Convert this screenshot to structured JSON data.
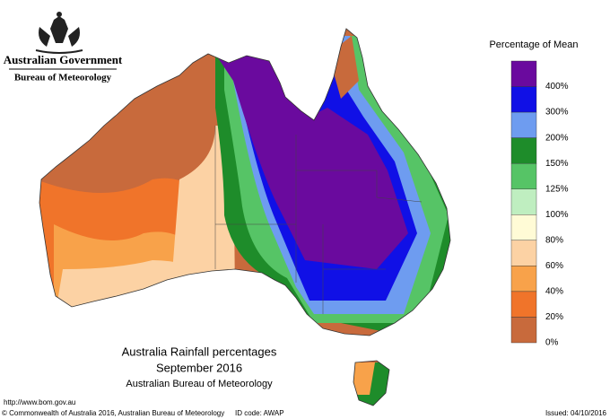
{
  "header": {
    "government": "Australian Government",
    "bureau": "Bureau of Meteorology"
  },
  "legend": {
    "title": "Percentage of Mean",
    "items": [
      {
        "label": "400%",
        "color": "#6a0a9e"
      },
      {
        "label": "300%",
        "color": "#1010e6"
      },
      {
        "label": "200%",
        "color": "#6e9cf0"
      },
      {
        "label": "150%",
        "color": "#1e8c2a"
      },
      {
        "label": "125%",
        "color": "#56c466"
      },
      {
        "label": "100%",
        "color": "#bfeec0"
      },
      {
        "label": "80%",
        "color": "#fffbd6"
      },
      {
        "label": "60%",
        "color": "#fcd2a4"
      },
      {
        "label": "40%",
        "color": "#f8a24a"
      },
      {
        "label": "20%",
        "color": "#f0742a"
      },
      {
        "label": "0%",
        "color": "#c86a3c"
      }
    ]
  },
  "title": {
    "line1": "Australia Rainfall percentages",
    "line2": "September 2016",
    "line3": "Australian Bureau of Meteorology"
  },
  "footer": {
    "url": "http://www.bom.gov.au",
    "copyright": "© Commonwealth of Australia 2016, Australian Bureau of Meteorology",
    "id": "ID code: AWAP",
    "issued": "Issued: 04/10/2016"
  }
}
